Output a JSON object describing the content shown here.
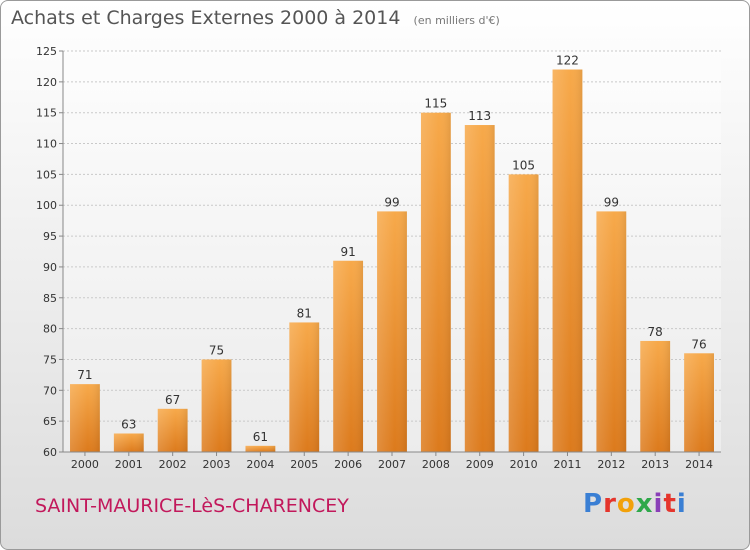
{
  "header": {
    "title": "Achats et Charges Externes 2000 à 2014",
    "subtitle": "(en milliers d'€)"
  },
  "footer": {
    "commune": "SAINT-MAURICE-LèS-CHARENCEY",
    "logo_letters": [
      "P",
      "r",
      "o",
      "x",
      "i",
      "t",
      "i"
    ]
  },
  "chart_data": {
    "type": "bar",
    "title": "Achats et Charges Externes 2000 à 2014",
    "subtitle": "(en milliers d'€)",
    "xlabel": "",
    "ylabel": "",
    "categories": [
      "2000",
      "2001",
      "2002",
      "2003",
      "2004",
      "2005",
      "2006",
      "2007",
      "2008",
      "2009",
      "2010",
      "2011",
      "2012",
      "2013",
      "2014"
    ],
    "values": [
      71,
      63,
      67,
      75,
      61,
      81,
      91,
      99,
      115,
      113,
      105,
      122,
      99,
      78,
      76
    ],
    "ylim": [
      60,
      125
    ],
    "yticks": [
      60,
      65,
      70,
      75,
      80,
      85,
      90,
      95,
      100,
      105,
      110,
      115,
      120,
      125
    ],
    "grid": true,
    "legend": "none",
    "bar_color": "#f0952e"
  }
}
